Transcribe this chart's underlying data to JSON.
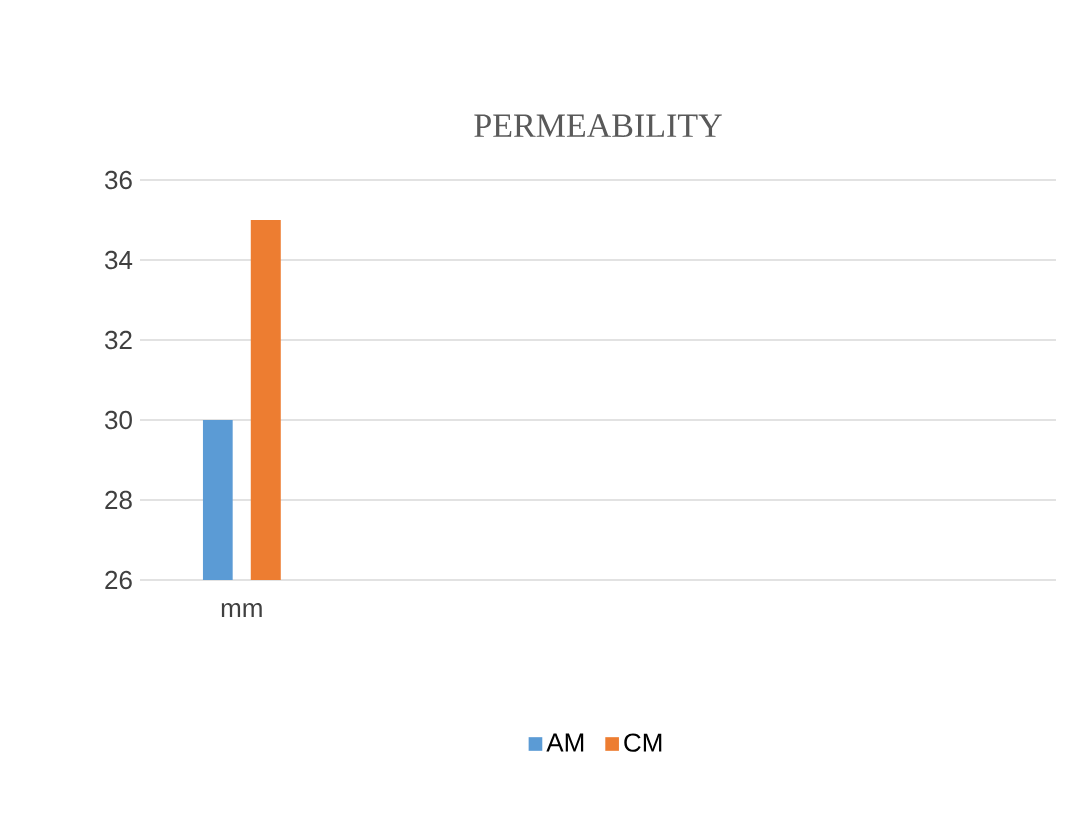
{
  "chart_data": {
    "type": "bar",
    "title": "PERMEABILITY",
    "categories": [
      "mm"
    ],
    "series": [
      {
        "name": "AM",
        "color": "#5b9bd5",
        "values": [
          30
        ]
      },
      {
        "name": "CM",
        "color": "#ed7d31",
        "values": [
          35
        ]
      }
    ],
    "ylim": [
      26,
      36
    ],
    "yticks": [
      26,
      28,
      30,
      32,
      34,
      36
    ],
    "grid": "y",
    "legend": "bottom"
  }
}
